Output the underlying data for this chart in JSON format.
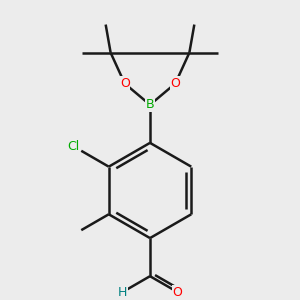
{
  "background_color": "#ececec",
  "bond_color": "#1a1a1a",
  "bond_width": 1.8,
  "atom_colors": {
    "O": "#ff0000",
    "B": "#00aa00",
    "Cl": "#00aa00",
    "C": "#1a1a1a",
    "H": "#008080",
    "N": "#0000ff"
  },
  "figsize": [
    3.0,
    3.0
  ],
  "dpi": 100,
  "scale": 1.0
}
